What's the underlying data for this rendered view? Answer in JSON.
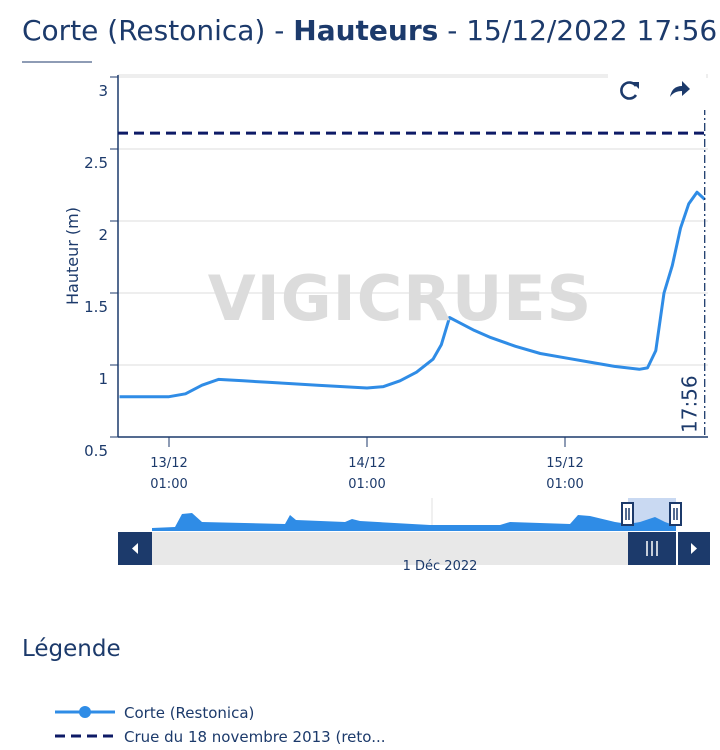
{
  "chart_data": {
    "type": "line",
    "title_parts": [
      "Corte (Restonica) -",
      "Hauteurs",
      "- 15/12/2022 17:56"
    ],
    "ylabel": "Hauteur (m)",
    "watermark": "VIGICRUES",
    "x": [
      "12/12 19:00",
      "12/12 22:00",
      "13/12 01:00",
      "13/12 03:00",
      "13/12 05:00",
      "13/12 07:00",
      "13/12 10:00",
      "13/12 13:00",
      "13/12 16:00",
      "13/12 19:00",
      "13/12 22:00",
      "14/12 01:00",
      "14/12 03:00",
      "14/12 05:00",
      "14/12 07:00",
      "14/12 09:00",
      "14/12 10:00",
      "14/12 11:00",
      "14/12 12:00",
      "14/12 14:00",
      "14/12 16:00",
      "14/12 19:00",
      "14/12 22:00",
      "15/12 01:00",
      "15/12 04:00",
      "15/12 07:00",
      "15/12 10:00",
      "15/12 11:00",
      "15/12 12:00",
      "15/12 13:00",
      "15/12 14:00",
      "15/12 15:00",
      "15/12 16:00",
      "15/12 17:00",
      "15/12 17:56"
    ],
    "series": [
      {
        "name": "Corte (Restonica)",
        "color": "#2f8ce6",
        "values": [
          0.78,
          0.78,
          0.78,
          0.8,
          0.86,
          0.9,
          0.89,
          0.88,
          0.87,
          0.86,
          0.85,
          0.84,
          0.85,
          0.89,
          0.95,
          1.04,
          1.14,
          1.33,
          1.3,
          1.24,
          1.19,
          1.13,
          1.08,
          1.05,
          1.02,
          0.99,
          0.97,
          0.98,
          1.1,
          1.5,
          1.69,
          1.95,
          2.12,
          2.2,
          2.15
        ]
      }
    ],
    "reference_lines": [
      {
        "name": "Crue du 18 novembre 2013 (reto...",
        "color": "#0d1a66",
        "value": 2.61
      }
    ],
    "xlim": [
      "12/12 18:49",
      "15/12 18:20"
    ],
    "xticks": [
      "13/12 01:00",
      "14/12 01:00",
      "15/12 01:00"
    ],
    "ylim": [
      0.5,
      3
    ],
    "yticks": [
      0.5,
      1,
      1.5,
      2,
      2.5,
      3
    ],
    "grid": true,
    "current_time_label": "17:56",
    "navigator_label": "1 Déc 2022",
    "legend_title": "Légende"
  }
}
